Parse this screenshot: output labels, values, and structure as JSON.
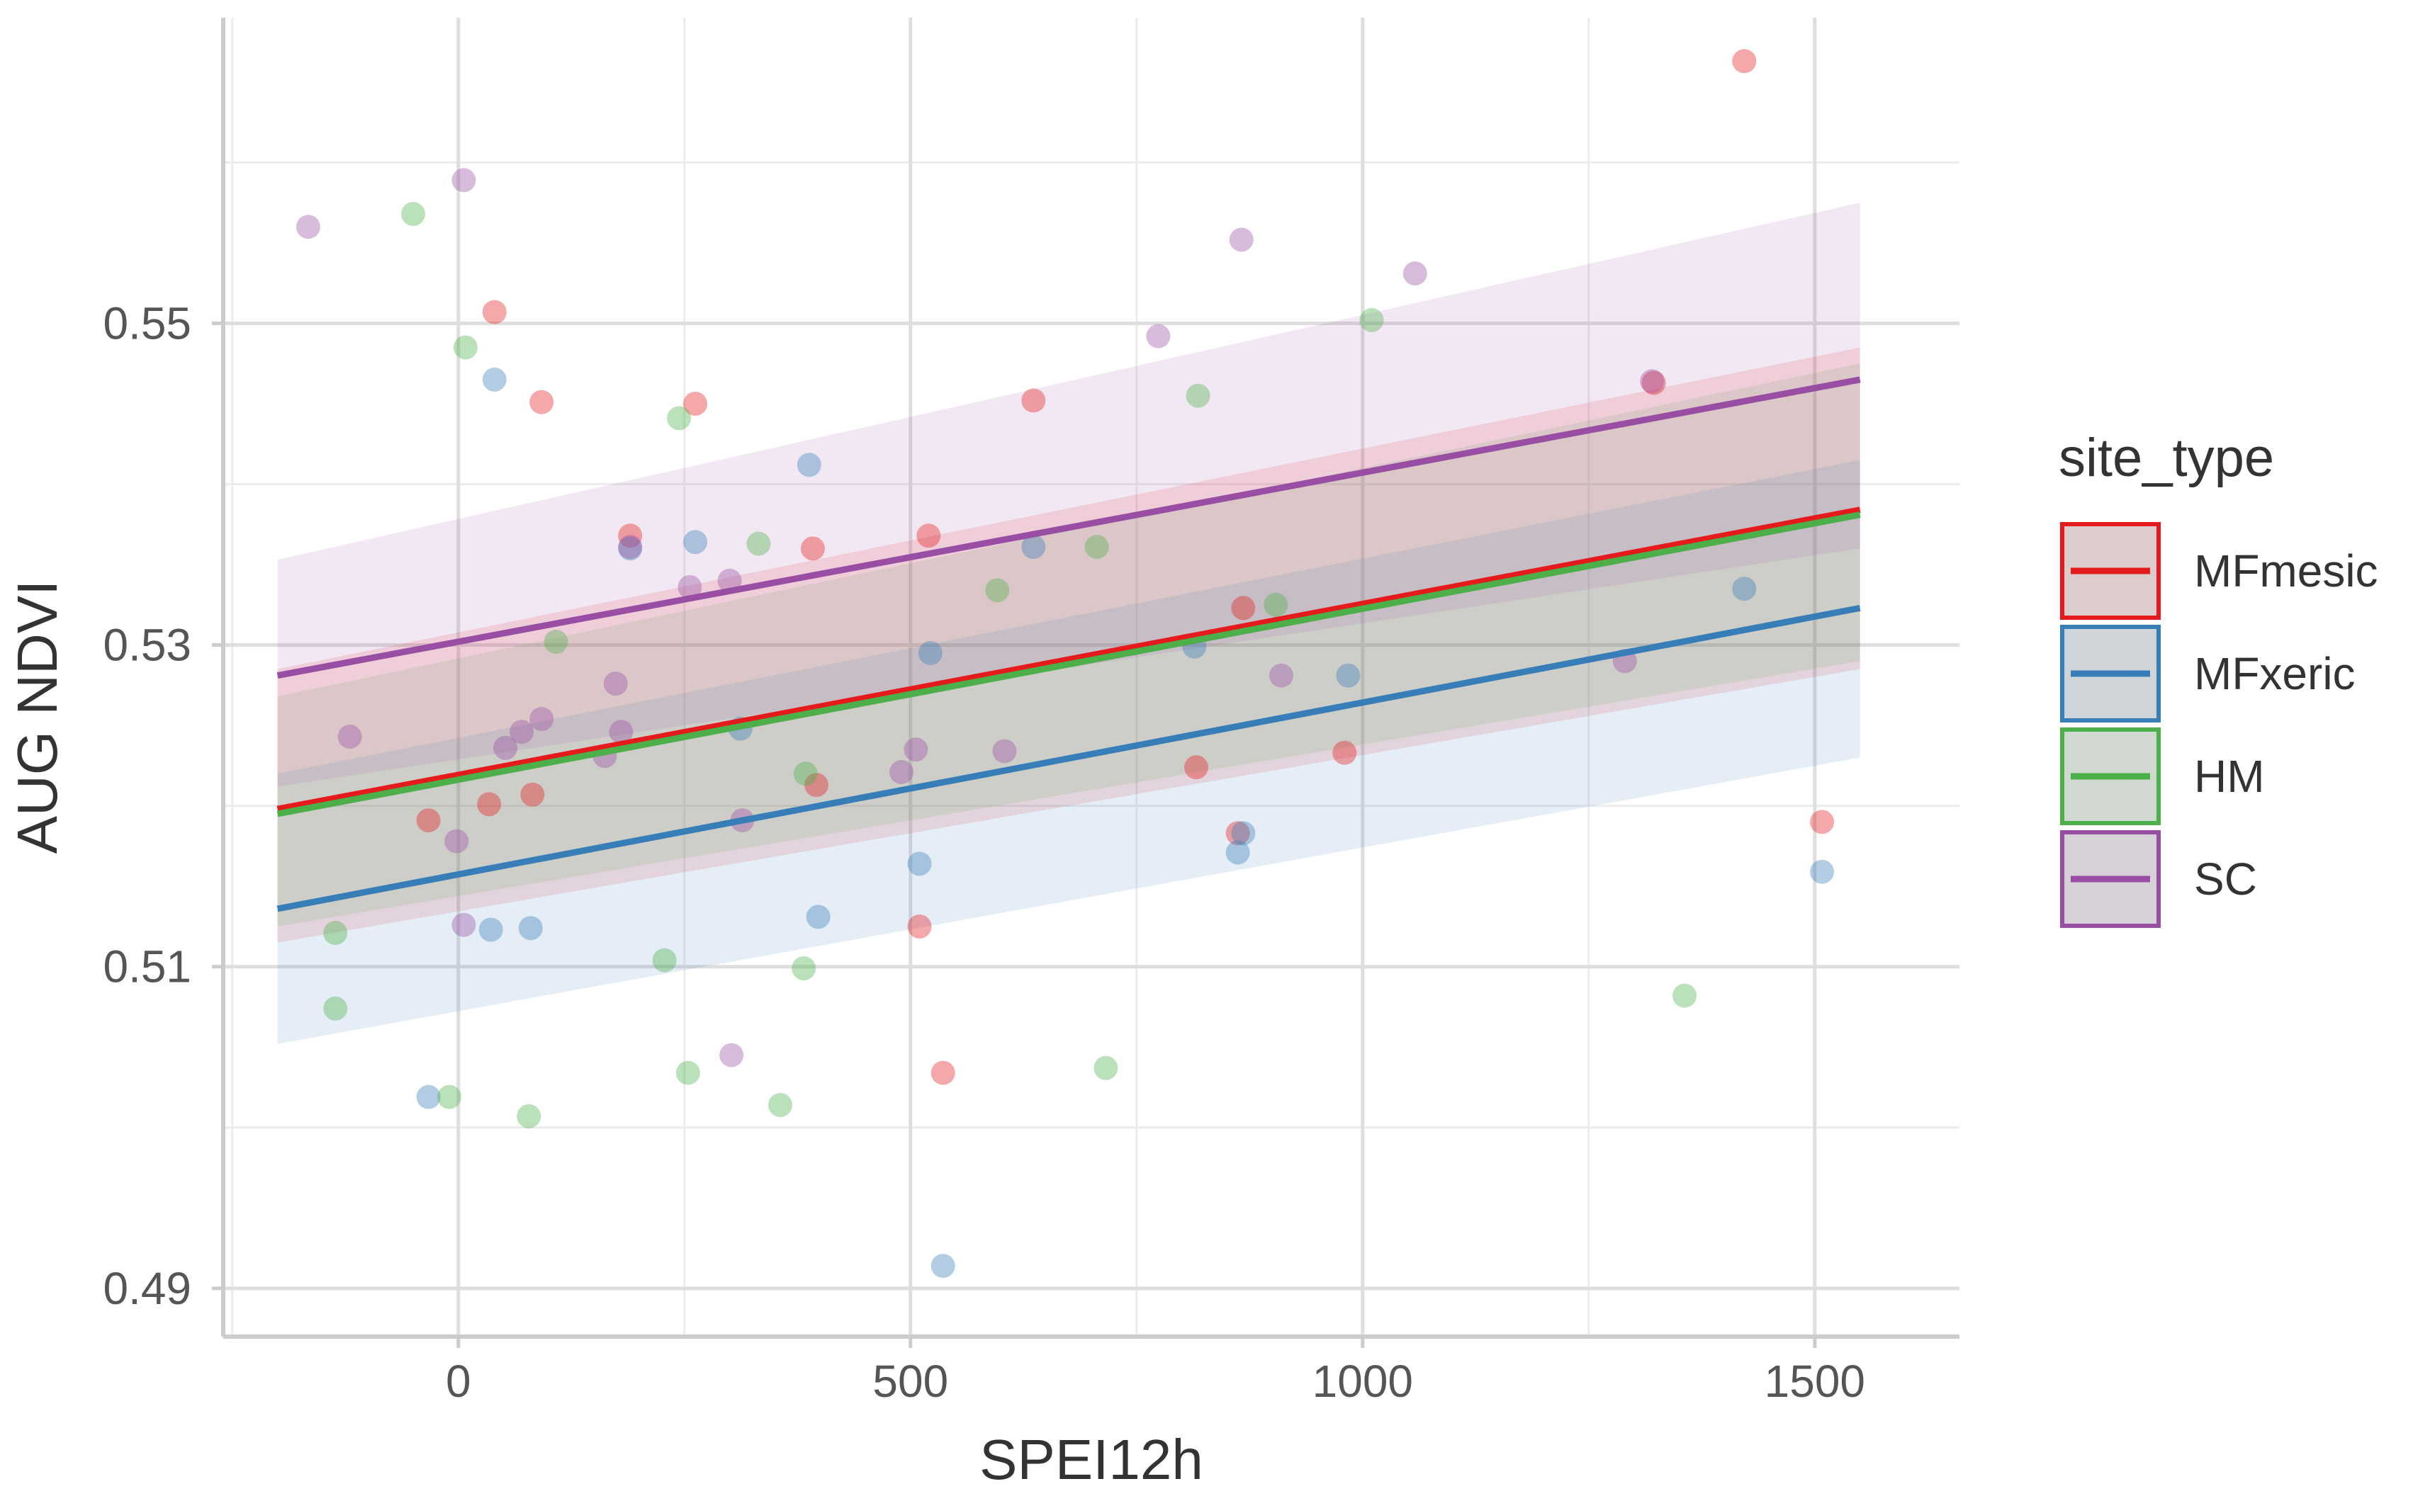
{
  "chart_data": {
    "type": "scatter",
    "title": "",
    "xlabel": "SPEI12h",
    "ylabel": "AUG NDVI",
    "xlim": [
      -260,
      1660
    ],
    "ylim": [
      0.487,
      0.569
    ],
    "xticks": [
      0,
      500,
      1000,
      1500
    ],
    "xtick_labels": [
      "0",
      "500",
      "1000",
      "1500"
    ],
    "yticks": [
      0.49,
      0.51,
      0.53,
      0.55
    ],
    "ytick_labels": [
      "0.49",
      "0.51",
      "0.53",
      "0.55"
    ],
    "grid": true,
    "legend_title": "site_type",
    "legend_position": "right",
    "series": [
      {
        "name": "MFmesic",
        "color": "#E41A1C",
        "line": {
          "x": [
            -200,
            1550
          ],
          "y": [
            0.5198,
            0.5384
          ]
        },
        "ribbon": {
          "x": [
            -200,
            1550
          ],
          "lower": [
            0.5115,
            0.5285
          ],
          "upper": [
            0.5285,
            0.5485
          ]
        },
        "points": [
          {
            "x": 40,
            "y": 0.5507
          },
          {
            "x": 92,
            "y": 0.5451
          },
          {
            "x": 262,
            "y": 0.545
          },
          {
            "x": 190,
            "y": 0.5368
          },
          {
            "x": 392,
            "y": 0.536
          },
          {
            "x": 520,
            "y": 0.5368
          },
          {
            "x": 636,
            "y": 0.5452
          },
          {
            "x": 1422,
            "y": 0.5663
          },
          {
            "x": -33,
            "y": 0.5191
          },
          {
            "x": 34,
            "y": 0.5201
          },
          {
            "x": 82,
            "y": 0.5207
          },
          {
            "x": 396,
            "y": 0.5213
          },
          {
            "x": 510,
            "y": 0.5125
          },
          {
            "x": 536,
            "y": 0.5034
          },
          {
            "x": 816,
            "y": 0.5224
          },
          {
            "x": 868,
            "y": 0.5323
          },
          {
            "x": 862,
            "y": 0.5183
          },
          {
            "x": 980,
            "y": 0.5233
          },
          {
            "x": 1508,
            "y": 0.519
          },
          {
            "x": 1322,
            "y": 0.5463
          }
        ]
      },
      {
        "name": "MFxeric",
        "color": "#377EB8",
        "line": {
          "x": [
            -200,
            1550
          ],
          "y": [
            0.5136,
            0.5323
          ]
        },
        "ribbon": {
          "x": [
            -200,
            1550
          ],
          "lower": [
            0.5052,
            0.523
          ],
          "upper": [
            0.522,
            0.5415
          ]
        },
        "points": [
          {
            "x": 40,
            "y": 0.5465
          },
          {
            "x": 388,
            "y": 0.5412
          },
          {
            "x": 190,
            "y": 0.536
          },
          {
            "x": 262,
            "y": 0.5364
          },
          {
            "x": 636,
            "y": 0.5361
          },
          {
            "x": 312,
            "y": 0.5248
          },
          {
            "x": 522,
            "y": 0.5295
          },
          {
            "x": 814,
            "y": 0.5299
          },
          {
            "x": 984,
            "y": 0.5281
          },
          {
            "x": 1422,
            "y": 0.5335
          },
          {
            "x": 36,
            "y": 0.5123
          },
          {
            "x": 80,
            "y": 0.5124
          },
          {
            "x": 510,
            "y": 0.5164
          },
          {
            "x": 398,
            "y": 0.5131
          },
          {
            "x": -33,
            "y": 0.5019
          },
          {
            "x": 536,
            "y": 0.4914
          },
          {
            "x": 862,
            "y": 0.5171
          },
          {
            "x": 868,
            "y": 0.5183
          },
          {
            "x": 1508,
            "y": 0.5159
          }
        ]
      },
      {
        "name": "HM",
        "color": "#4DAF4A",
        "line": {
          "x": [
            -200,
            1550
          ],
          "y": [
            0.5195,
            0.5381
          ]
        },
        "ribbon": {
          "x": [
            -200,
            1550
          ],
          "lower": [
            0.5125,
            0.529
          ],
          "upper": [
            0.5268,
            0.5475
          ]
        },
        "points": [
          {
            "x": -50,
            "y": 0.5568
          },
          {
            "x": 8,
            "y": 0.5485
          },
          {
            "x": 244,
            "y": 0.5441
          },
          {
            "x": 332,
            "y": 0.5363
          },
          {
            "x": 108,
            "y": 0.5302
          },
          {
            "x": 596,
            "y": 0.5334
          },
          {
            "x": 706,
            "y": 0.5361
          },
          {
            "x": 818,
            "y": 0.5455
          },
          {
            "x": 1010,
            "y": 0.5502
          },
          {
            "x": 904,
            "y": 0.5325
          },
          {
            "x": 384,
            "y": 0.522
          },
          {
            "x": -136,
            "y": 0.5121
          },
          {
            "x": -136,
            "y": 0.5074
          },
          {
            "x": 228,
            "y": 0.5104
          },
          {
            "x": 382,
            "y": 0.5099
          },
          {
            "x": 254,
            "y": 0.5034
          },
          {
            "x": -10,
            "y": 0.5019
          },
          {
            "x": 78,
            "y": 0.5007
          },
          {
            "x": 356,
            "y": 0.5014
          },
          {
            "x": 716,
            "y": 0.5037
          },
          {
            "x": 1356,
            "y": 0.5082
          }
        ]
      },
      {
        "name": "SC",
        "color": "#984EA3",
        "line": {
          "x": [
            -200,
            1550
          ],
          "y": [
            0.5281,
            0.5465
          ]
        },
        "ribbon": {
          "x": [
            -200,
            1550
          ],
          "lower": [
            0.5212,
            0.536
          ],
          "upper": [
            0.5353,
            0.5575
          ]
        },
        "points": [
          {
            "x": -166,
            "y": 0.556
          },
          {
            "x": 6,
            "y": 0.5589
          },
          {
            "x": 866,
            "y": 0.5552
          },
          {
            "x": 1058,
            "y": 0.5531
          },
          {
            "x": 774,
            "y": 0.5492
          },
          {
            "x": 1320,
            "y": 0.5464
          },
          {
            "x": 190,
            "y": 0.5361
          },
          {
            "x": 256,
            "y": 0.5336
          },
          {
            "x": 300,
            "y": 0.534
          },
          {
            "x": -120,
            "y": 0.5243
          },
          {
            "x": 52,
            "y": 0.5236
          },
          {
            "x": 70,
            "y": 0.5246
          },
          {
            "x": 92,
            "y": 0.5254
          },
          {
            "x": 174,
            "y": 0.5276
          },
          {
            "x": 180,
            "y": 0.5246
          },
          {
            "x": 162,
            "y": 0.5231
          },
          {
            "x": 506,
            "y": 0.5235
          },
          {
            "x": 490,
            "y": 0.5221
          },
          {
            "x": 604,
            "y": 0.5234
          },
          {
            "x": 910,
            "y": 0.5281
          },
          {
            "x": 1290,
            "y": 0.529
          },
          {
            "x": -2,
            "y": 0.5178
          },
          {
            "x": 6,
            "y": 0.5126
          },
          {
            "x": 302,
            "y": 0.5045
          },
          {
            "x": 314,
            "y": 0.5191
          }
        ]
      }
    ]
  }
}
